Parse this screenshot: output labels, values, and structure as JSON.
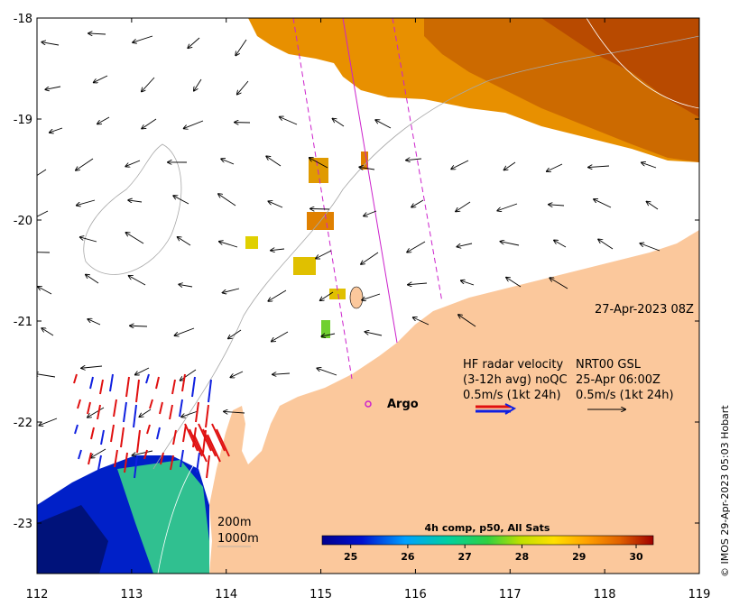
{
  "map": {
    "lon_ticks": [
      "112",
      "113",
      "114",
      "115",
      "116",
      "117",
      "118",
      "119"
    ],
    "lat_ticks": [
      "-18",
      "-19",
      "-20",
      "-21",
      "-22",
      "-23"
    ],
    "lon_range": [
      112,
      119
    ],
    "lat_range": [
      -23.5,
      -18
    ],
    "land_color": "#fbc89c",
    "date_label": "27-Apr-2023 08Z",
    "legend": {
      "col1": [
        "HF radar velocity",
        "(3-12h avg) noQC",
        "0.5m/s (1kt 24h)"
      ],
      "col2": [
        "NRT00 GSL",
        "25-Apr 06:00Z",
        "0.5m/s (1kt 24h)"
      ]
    },
    "argo_label": "Argo",
    "depth_labels": [
      "200m",
      "1000m"
    ],
    "colorbar": {
      "title": "4h comp, p50, All Sats",
      "ticks": [
        "25",
        "26",
        "27",
        "28",
        "29",
        "30"
      ]
    },
    "copyright": "© IMOS 29-Apr-2023 05:03 Hobart",
    "colors": {
      "radar_red": "#e01010",
      "radar_blue": "#1020e0",
      "argo": "#cc22cc",
      "track": "#cc22cc"
    }
  }
}
